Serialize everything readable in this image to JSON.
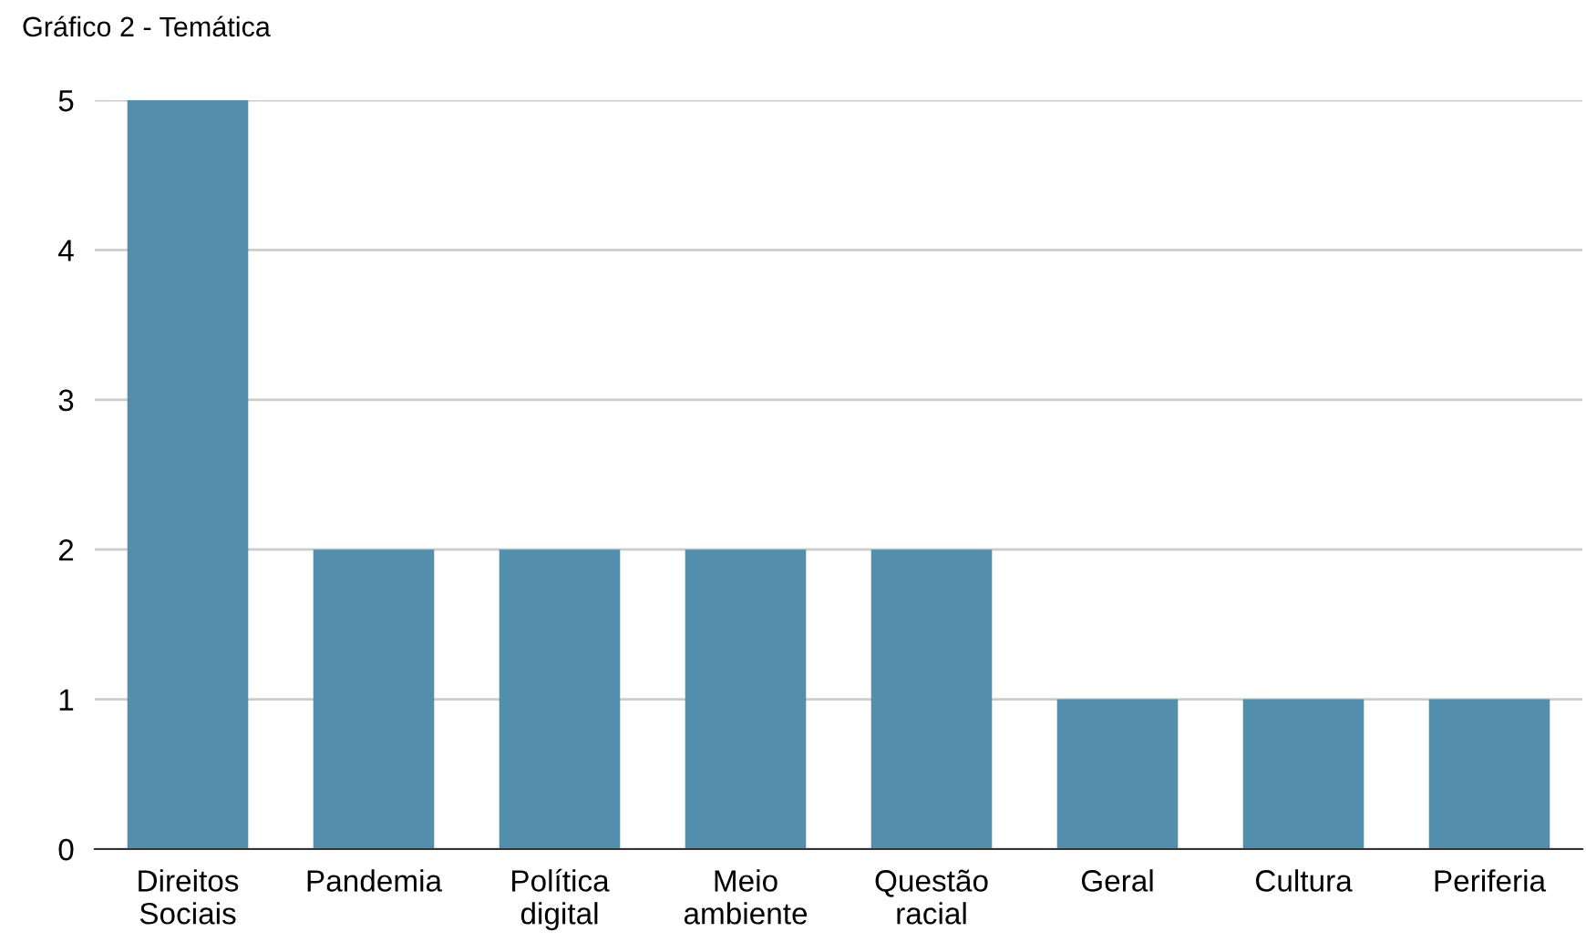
{
  "chart_data": {
    "type": "bar",
    "title": "Gráfico 2 - Temática",
    "categories": [
      "Direitos\nSociais",
      "Pandemia",
      "Política\ndigital",
      "Meio\nambiente",
      "Questão\nracial",
      "Geral",
      "Cultura",
      "Periferia"
    ],
    "values": [
      5,
      2,
      2,
      2,
      2,
      1,
      1,
      1
    ],
    "color": "#548ead",
    "ylim": [
      0,
      5
    ],
    "yticks": [
      0,
      1,
      2,
      3,
      4,
      5
    ],
    "grid": "y",
    "legend": false
  }
}
